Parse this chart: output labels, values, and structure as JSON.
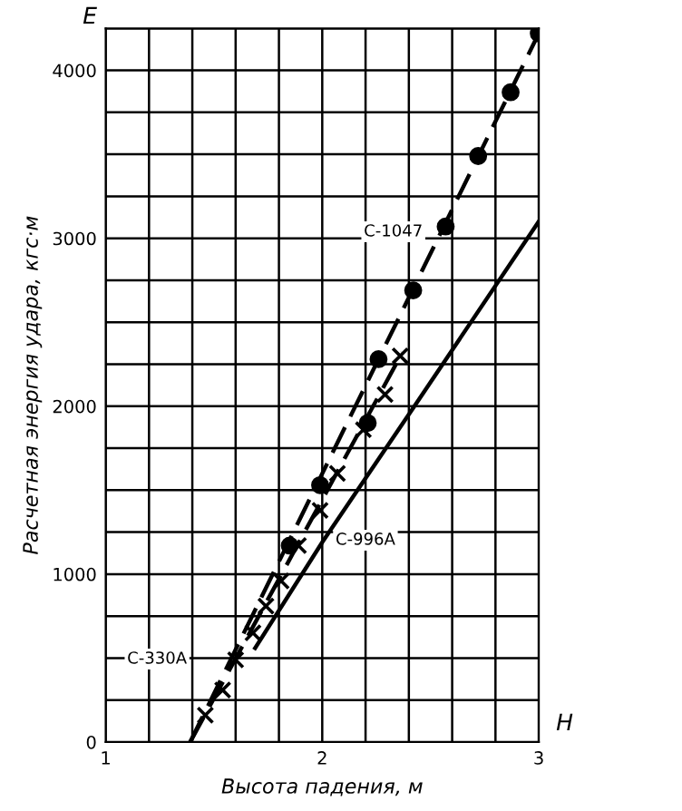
{
  "chart_data": {
    "type": "line",
    "xlabel": "Высота падения, м",
    "ylabel": "Расчетная энергия удара, кгс·м",
    "annotations": [
      "E",
      "H"
    ],
    "xlim": [
      1,
      3
    ],
    "ylim": [
      0,
      4250
    ],
    "xticks": [
      1,
      {
        "value": 1.2,
        "label": null
      },
      {
        "value": 1.4,
        "label": null
      },
      {
        "value": 1.6,
        "label": null
      },
      {
        "value": 1.8,
        "label": null
      },
      2,
      {
        "value": 2.2,
        "label": null
      },
      {
        "value": 2.4,
        "label": null
      },
      {
        "value": 2.6,
        "label": null
      },
      {
        "value": 2.8,
        "label": null
      },
      3
    ],
    "yticks": [
      0,
      {
        "value": 250,
        "label": null
      },
      {
        "value": 500,
        "label": null
      },
      {
        "value": 750,
        "label": null
      },
      1000,
      {
        "value": 1250,
        "label": null
      },
      {
        "value": 1500,
        "label": null
      },
      {
        "value": 1750,
        "label": null
      },
      2000,
      {
        "value": 2250,
        "label": null
      },
      {
        "value": 2500,
        "label": null
      },
      {
        "value": 2750,
        "label": null
      },
      3000,
      {
        "value": 3250,
        "label": null
      },
      {
        "value": 3500,
        "label": null
      },
      {
        "value": 3750,
        "label": null
      },
      4000,
      {
        "value": 4250,
        "label": null
      }
    ],
    "grid": true,
    "series": [
      {
        "name": "С-1047",
        "line_style": "dashed",
        "color": "#000000",
        "x": [
          1.39,
          3.0
        ],
        "values": [
          0,
          4220
        ]
      },
      {
        "type": "scatter",
        "marker": "circle",
        "color": "#000000",
        "x": [
          1.85,
          1.99,
          2.21,
          2.26,
          2.42,
          2.57,
          2.72,
          2.87,
          3.0
        ],
        "values": [
          1170,
          1530,
          1900,
          2280,
          2690,
          3070,
          3490,
          3870,
          4220
        ]
      },
      {
        "name": "С-330А",
        "line_style": "dashed",
        "color": "#000000",
        "x": [
          1.39,
          2.37
        ],
        "values": [
          0,
          2320
        ]
      },
      {
        "type": "scatter",
        "marker": "cross",
        "color": "#000000",
        "x": [
          1.46,
          1.54,
          1.6,
          1.68,
          1.74,
          1.81,
          1.89,
          1.99,
          2.07,
          2.19,
          2.29,
          2.36
        ],
        "values": [
          160,
          310,
          490,
          650,
          810,
          960,
          1170,
          1380,
          1600,
          1860,
          2070,
          2300
        ]
      },
      {
        "name": "С-996А",
        "line_style": "solid",
        "color": "#000000",
        "x": [
          1.69,
          2.0,
          2.42,
          3.0
        ],
        "values": [
          560,
          1190,
          1990,
          3100
        ]
      }
    ]
  }
}
